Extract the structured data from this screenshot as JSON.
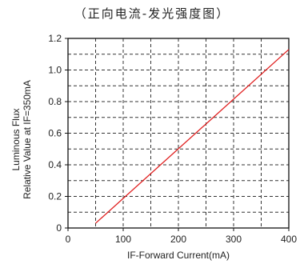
{
  "chart_data": {
    "type": "line",
    "title": "（正向电流-发光强度图）",
    "xlabel": "IF-Forward Current(mA)",
    "ylabel_lines": [
      "Luminous Flux",
      "Relative Value at IF=350mA"
    ],
    "xlim": [
      0,
      400
    ],
    "ylim": [
      0,
      1.2
    ],
    "xticks": [
      "0",
      "100",
      "200",
      "300",
      "400"
    ],
    "yticks": [
      "0",
      "0.2",
      "0.4",
      "0.6",
      "0.8",
      "1.0",
      "1.2"
    ],
    "grid": true,
    "series": [
      {
        "x": [
          50,
          400
        ],
        "y": [
          0.03,
          1.13
        ],
        "color": "#e02020"
      }
    ]
  }
}
